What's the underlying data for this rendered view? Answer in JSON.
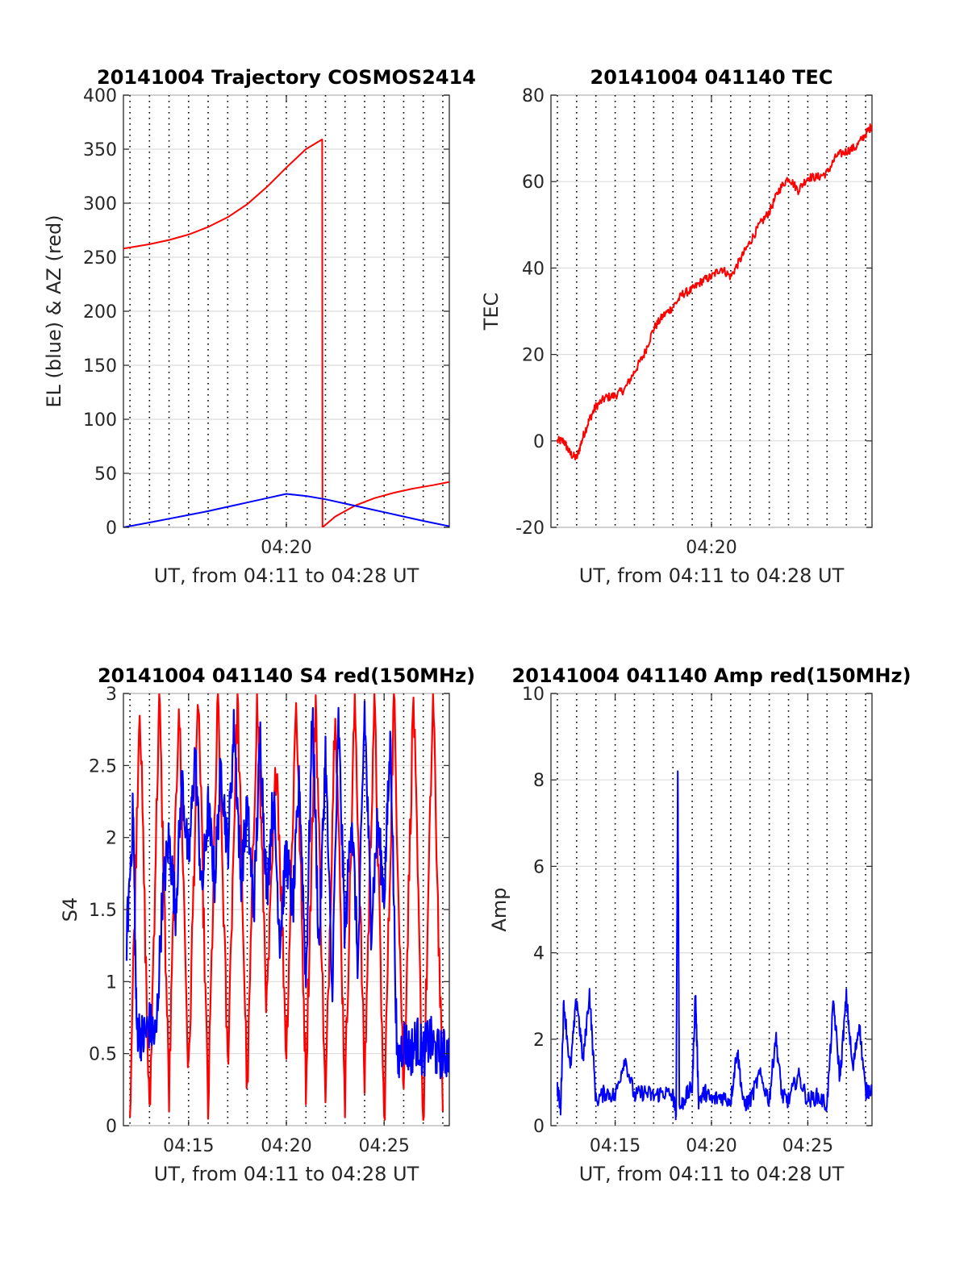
{
  "colors": {
    "red": "#ff0000",
    "blue": "#0000ff"
  },
  "chart_data": [
    {
      "id": "trajectory",
      "type": "line",
      "title": "20141004 Trajectory COSMOS2414",
      "xlabel": "UT, from 04:11 to 04:28 UT",
      "ylabel": "EL (blue) & AZ (red)",
      "xlim": [
        "04:11:40",
        "04:28:20"
      ],
      "ylim": [
        0,
        400
      ],
      "yticks": [
        0,
        50,
        100,
        150,
        200,
        250,
        300,
        350,
        400
      ],
      "xticks": [
        {
          "t": "04:20:00",
          "label": "04:20"
        }
      ],
      "grid": true,
      "series": [
        {
          "color": "red",
          "x": [
            "04:11:40",
            "04:13:00",
            "04:14:00",
            "04:15:00",
            "04:16:00",
            "04:17:00",
            "04:18:00",
            "04:19:00",
            "04:20:00",
            "04:21:00",
            "04:21:50",
            "04:21:51",
            "04:22:30",
            "04:23:30",
            "04:24:30",
            "04:25:30",
            "04:26:30",
            "04:27:30",
            "04:28:20"
          ],
          "values": [
            258,
            262,
            266,
            271,
            278,
            287,
            299,
            315,
            333,
            350,
            359,
            0,
            10,
            20,
            27,
            32,
            36,
            39,
            42
          ]
        },
        {
          "color": "blue",
          "x": [
            "04:11:40",
            "04:13:00",
            "04:14:00",
            "04:15:00",
            "04:16:00",
            "04:17:00",
            "04:18:00",
            "04:19:00",
            "04:20:00",
            "04:21:00",
            "04:22:00",
            "04:23:00",
            "04:24:00",
            "04:25:00",
            "04:26:00",
            "04:27:00",
            "04:28:20"
          ],
          "values": [
            0,
            4.5,
            8,
            11.5,
            15,
            19,
            23,
            27,
            31,
            29,
            26,
            22,
            18,
            14,
            10,
            6,
            1
          ]
        }
      ]
    },
    {
      "id": "tec",
      "type": "line",
      "title": "20141004 041140 TEC",
      "xlabel": "UT, from 04:11 to 04:28 UT",
      "ylabel": "TEC",
      "xlim": [
        "04:11:40",
        "04:28:20"
      ],
      "ylim": [
        -20,
        80
      ],
      "yticks": [
        -20,
        0,
        20,
        40,
        60,
        80
      ],
      "xticks": [
        {
          "t": "04:20:00",
          "label": "04:20"
        }
      ],
      "grid": true,
      "series": [
        {
          "color": "red",
          "x": [
            "04:12:00",
            "04:12:20",
            "04:12:40",
            "04:13:00",
            "04:13:20",
            "04:13:40",
            "04:14:00",
            "04:14:30",
            "04:15:00",
            "04:15:30",
            "04:16:00",
            "04:16:30",
            "04:17:00",
            "04:17:30",
            "04:18:00",
            "04:18:30",
            "04:19:00",
            "04:19:30",
            "04:20:00",
            "04:20:30",
            "04:21:00",
            "04:21:30",
            "04:22:00",
            "04:22:30",
            "04:23:00",
            "04:23:30",
            "04:24:00",
            "04:24:30",
            "04:25:00",
            "04:25:30",
            "04:26:00",
            "04:26:30",
            "04:27:00",
            "04:27:30",
            "04:28:00",
            "04:28:20"
          ],
          "values": [
            0,
            0,
            -3,
            -4,
            1,
            5,
            8,
            10,
            10.5,
            12,
            16,
            20,
            26,
            29,
            31,
            34,
            35,
            37,
            38,
            40,
            38,
            42,
            46,
            50,
            53,
            58,
            61,
            58,
            61,
            61,
            62,
            66,
            67,
            68,
            71,
            73
          ]
        }
      ]
    },
    {
      "id": "s4",
      "type": "line",
      "title": "20141004 041140 S4 red(150MHz)",
      "xlabel": "UT, from 04:11 to 04:28 UT",
      "ylabel": "S4",
      "xlim": [
        "04:11:40",
        "04:28:20"
      ],
      "ylim": [
        0,
        3
      ],
      "yticks": [
        0,
        0.5,
        1,
        1.5,
        2,
        2.5,
        3
      ],
      "xticks": [
        {
          "t": "04:15:00",
          "label": "04:15"
        },
        {
          "t": "04:20:00",
          "label": "04:20"
        },
        {
          "t": "04:25:00",
          "label": "04:25"
        }
      ],
      "grid": true,
      "series": [
        {
          "color": "red",
          "x": [
            "04:12:00",
            "04:12:30",
            "04:13:00",
            "04:13:30",
            "04:14:00",
            "04:14:30",
            "04:15:00",
            "04:15:30",
            "04:16:00",
            "04:16:30",
            "04:17:00",
            "04:17:30",
            "04:18:00",
            "04:18:30",
            "04:19:00",
            "04:19:30",
            "04:20:00",
            "04:20:30",
            "04:21:00",
            "04:21:30",
            "04:22:00",
            "04:22:30",
            "04:23:00",
            "04:23:30",
            "04:24:00",
            "04:24:30",
            "04:25:00",
            "04:25:30",
            "04:26:00",
            "04:26:30",
            "04:27:00",
            "04:27:30",
            "04:28:00"
          ],
          "values": [
            0.1,
            3,
            0,
            3,
            0.2,
            3,
            0.3,
            3,
            0.1,
            3,
            0.4,
            3,
            0.2,
            3,
            0.8,
            2.6,
            0.5,
            3,
            0.3,
            3,
            0.1,
            3,
            0.2,
            3,
            0.3,
            3,
            0,
            3,
            0.2,
            3,
            0,
            3,
            0.1
          ]
        },
        {
          "color": "blue",
          "x": [
            "04:11:50",
            "04:12:10",
            "04:12:20",
            "04:12:40",
            "04:13:00",
            "04:13:20",
            "04:13:40",
            "04:14:00",
            "04:14:20",
            "04:14:40",
            "04:15:00",
            "04:15:20",
            "04:15:40",
            "04:16:00",
            "04:16:20",
            "04:16:40",
            "04:17:00",
            "04:17:20",
            "04:17:40",
            "04:18:00",
            "04:18:20",
            "04:18:40",
            "04:19:00",
            "04:19:20",
            "04:19:40",
            "04:20:00",
            "04:20:20",
            "04:20:40",
            "04:21:00",
            "04:21:20",
            "04:21:40",
            "04:22:00",
            "04:22:20",
            "04:22:40",
            "04:23:00",
            "04:23:20",
            "04:23:40",
            "04:24:00",
            "04:24:20",
            "04:24:40",
            "04:25:00",
            "04:25:20",
            "04:25:40",
            "04:26:00",
            "04:26:20",
            "04:26:40",
            "04:27:00",
            "04:27:20",
            "04:27:40",
            "04:28:00",
            "04:28:20"
          ],
          "values": [
            1.3,
            2.2,
            0.7,
            0.6,
            0.7,
            0.6,
            1.6,
            2.0,
            1.5,
            2.4,
            1.8,
            2.6,
            1.6,
            2.2,
            1.7,
            2.5,
            1.9,
            2.8,
            1.7,
            2.2,
            1.5,
            2.7,
            1.6,
            2.3,
            1.3,
            1.9,
            1.5,
            2.4,
            1.0,
            2.9,
            1.2,
            2.6,
            0.9,
            2.8,
            1.3,
            2.2,
            1.1,
            2.9,
            1.4,
            2.1,
            1.6,
            2.7,
            0.4,
            0.6,
            0.5,
            0.6,
            0.5,
            0.6,
            0.5,
            0.5,
            0.5
          ]
        }
      ]
    },
    {
      "id": "amp",
      "type": "line",
      "title": "20141004 041140 Amp red(150MHz)",
      "xlabel": "UT, from 04:11 to 04:28 UT",
      "ylabel": "Amp",
      "xlim": [
        "04:11:40",
        "04:28:20"
      ],
      "ylim": [
        0,
        10
      ],
      "yticks": [
        0,
        2,
        4,
        6,
        8,
        10
      ],
      "xticks": [
        {
          "t": "04:15:00",
          "label": "04:15"
        },
        {
          "t": "04:20:00",
          "label": "04:20"
        },
        {
          "t": "04:25:00",
          "label": "04:25"
        }
      ],
      "grid": true,
      "series": [
        {
          "color": "blue",
          "x": [
            "04:12:00",
            "04:12:10",
            "04:12:20",
            "04:12:40",
            "04:13:00",
            "04:13:20",
            "04:13:40",
            "04:14:00",
            "04:14:30",
            "04:15:00",
            "04:15:30",
            "04:16:00",
            "04:16:30",
            "04:17:00",
            "04:17:30",
            "04:18:00",
            "04:18:10",
            "04:18:15",
            "04:18:20",
            "04:18:40",
            "04:19:00",
            "04:19:10",
            "04:19:20",
            "04:19:40",
            "04:20:00",
            "04:20:30",
            "04:21:00",
            "04:21:20",
            "04:21:40",
            "04:22:00",
            "04:22:30",
            "04:23:00",
            "04:23:20",
            "04:23:40",
            "04:24:00",
            "04:24:30",
            "04:25:00",
            "04:25:30",
            "04:26:00",
            "04:26:20",
            "04:26:40",
            "04:27:00",
            "04:27:20",
            "04:27:40",
            "04:28:00",
            "04:28:20"
          ],
          "values": [
            0.8,
            0.3,
            2.8,
            1.2,
            2.9,
            1.4,
            3.0,
            0.5,
            0.7,
            0.6,
            1.5,
            0.6,
            0.7,
            0.6,
            0.7,
            0.6,
            0.2,
            8.2,
            0.3,
            0.6,
            0.8,
            3.0,
            0.5,
            0.7,
            0.5,
            0.6,
            0.5,
            1.7,
            0.4,
            0.5,
            1.1,
            0.5,
            2.0,
            0.6,
            0.5,
            1.1,
            0.5,
            0.6,
            0.4,
            2.8,
            1.0,
            2.9,
            1.2,
            2.3,
            0.7,
            0.8
          ]
        }
      ]
    }
  ]
}
